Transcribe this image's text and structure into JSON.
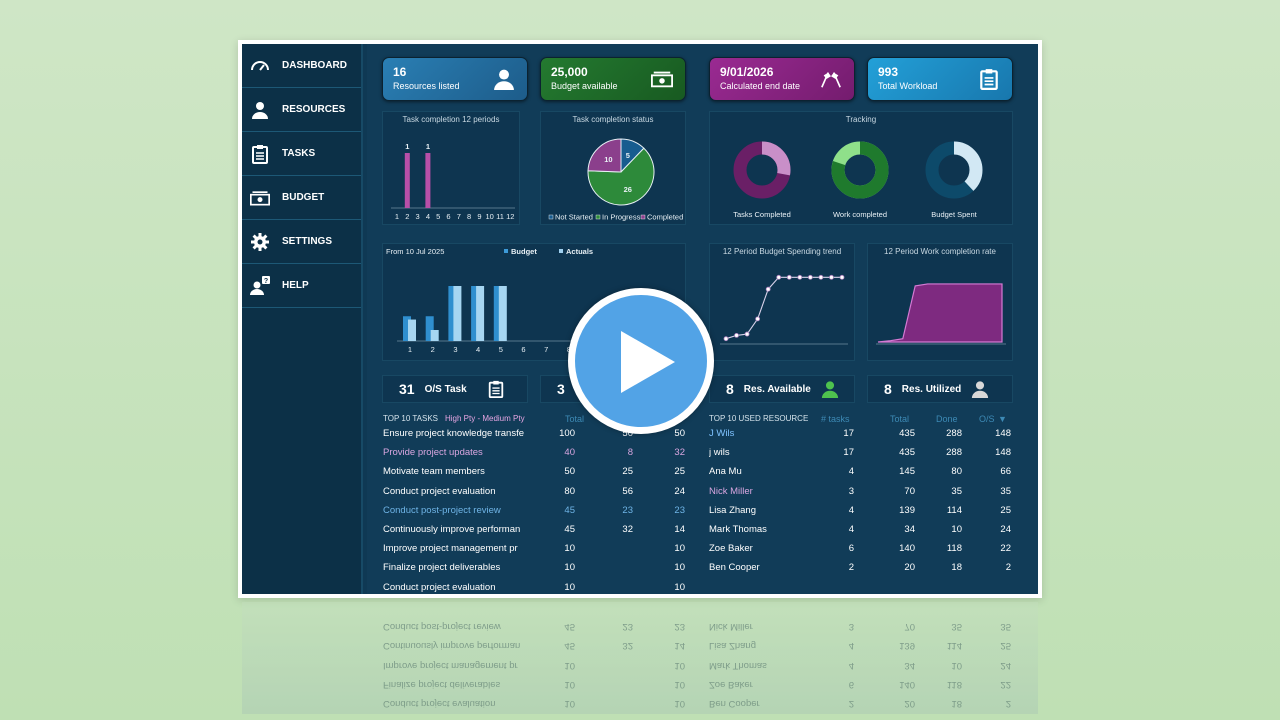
{
  "sidebar": {
    "items": [
      {
        "label": "DASHBOARD",
        "icon": "gauge-icon"
      },
      {
        "label": "RESOURCES",
        "icon": "person-icon"
      },
      {
        "label": "TASKS",
        "icon": "clipboard-icon"
      },
      {
        "label": "BUDGET",
        "icon": "money-icon"
      },
      {
        "label": "SETTINGS",
        "icon": "gear-icon"
      },
      {
        "label": "HELP",
        "icon": "help-person-icon"
      }
    ]
  },
  "cards": [
    {
      "value": "16",
      "label": "Resources listed",
      "color": "#2a7fb4",
      "icon": "person-icon"
    },
    {
      "value": "25,000",
      "label": "Budget available",
      "color": "#1f6e2a",
      "icon": "money-icon"
    },
    {
      "value": "9/01/2026",
      "label": "Calculated end date",
      "color": "#8a2384",
      "icon": "finish-flags-icon"
    },
    {
      "value": "993",
      "label": "Total Workload",
      "color": "#1e90c8",
      "icon": "clipboard-icon"
    }
  ],
  "task_completion": {
    "title": "Task completion 12 periods",
    "periods": [
      "1",
      "2",
      "3",
      "4",
      "5",
      "6",
      "7",
      "8",
      "9",
      "10",
      "11",
      "12"
    ],
    "values": [
      0,
      1,
      0,
      1,
      0,
      0,
      0,
      0,
      0,
      0,
      0,
      0
    ],
    "labels": [
      "",
      "1",
      "",
      "1",
      "",
      "",
      "",
      "",
      "",
      "",
      "",
      ""
    ]
  },
  "completion_status": {
    "title": "Task completion status",
    "slices": [
      {
        "name": "Not Started",
        "value": 5,
        "label": "5",
        "color": "#175c8f"
      },
      {
        "name": "In Progress",
        "value": 26,
        "label": "26",
        "color": "#2d8a3a"
      },
      {
        "name": "Completed",
        "value": 10,
        "label": "10",
        "color": "#8b3f8c"
      }
    ],
    "legend": [
      "Not Started",
      "In Progress",
      "Completed"
    ]
  },
  "tracking": {
    "title": "Tracking",
    "donuts": [
      {
        "label": "Tasks Completed",
        "fraction": 0.28,
        "fill": "#c98fc8",
        "base": "#6a1f66"
      },
      {
        "label": "Work completed",
        "fraction": 0.8,
        "fill": "#1f7a2d",
        "base": "#8fe08a"
      },
      {
        "label": "Budget Spent",
        "fraction": 0.38,
        "fill": "#d2e8f4",
        "base": "#0d4a6a"
      }
    ]
  },
  "budget_chart": {
    "title": "From 10 Jul 2025",
    "legend": [
      "Budget",
      "Actuals"
    ],
    "periods": [
      "1",
      "2",
      "3",
      "4",
      "5",
      "6",
      "7",
      "8"
    ],
    "budget": [
      0.45,
      0.45,
      1,
      1,
      1,
      0,
      0,
      0
    ],
    "actuals": [
      0.39,
      0.2,
      1,
      1,
      1,
      0,
      0,
      0
    ]
  },
  "spending_trend": {
    "title": "12 Period Budget Spending trend",
    "values": [
      0.05,
      0.1,
      0.12,
      0.35,
      0.8,
      0.98,
      0.98,
      0.98,
      0.98,
      0.98,
      0.98,
      0.98
    ]
  },
  "work_rate": {
    "title": "12 Period Work completion rate",
    "values": [
      0,
      0.02,
      0.05,
      0.85,
      0.88,
      0.88,
      0.88,
      0.88,
      0.88,
      0.88,
      0.88
    ]
  },
  "kpis": [
    {
      "value": "31",
      "label": "O/S Task",
      "icon": "clipboard-icon"
    },
    {
      "value": "3",
      "label": ""
    },
    {
      "value": "8",
      "label": "Res. Available",
      "icon": "person-available-icon"
    },
    {
      "value": "8",
      "label": "Res. Utilized",
      "icon": "person-icon"
    }
  ],
  "tasks_table": {
    "title": "TOP 10 TASKS",
    "filters": "High Pty - Medium Pty",
    "col_total": "Total",
    "rows": [
      {
        "name": "Ensure project knowledge transfe",
        "a": "100",
        "b": "50",
        "c": "50",
        "color": "#ffffff"
      },
      {
        "name": "Provide project updates",
        "a": "40",
        "b": "8",
        "c": "32",
        "color": "#d9a6e0"
      },
      {
        "name": "Motivate team members",
        "a": "50",
        "b": "25",
        "c": "25",
        "color": "#ffffff"
      },
      {
        "name": "Conduct project evaluation",
        "a": "80",
        "b": "56",
        "c": "24",
        "color": "#ffffff"
      },
      {
        "name": "Conduct post-project review",
        "a": "45",
        "b": "23",
        "c": "23",
        "color": "#6fb4e6"
      },
      {
        "name": "Continuously improve performan",
        "a": "45",
        "b": "32",
        "c": "14",
        "color": "#ffffff"
      },
      {
        "name": "Improve project management pr",
        "a": "10",
        "b": "",
        "c": "10",
        "color": "#ffffff"
      },
      {
        "name": "Finalize project deliverables",
        "a": "10",
        "b": "",
        "c": "10",
        "color": "#ffffff"
      },
      {
        "name": "Conduct project evaluation",
        "a": "10",
        "b": "",
        "c": "10",
        "color": "#ffffff"
      }
    ]
  },
  "resource_table": {
    "title": "TOP 10 USED RESOURCE",
    "cols": [
      "# tasks",
      "Total",
      "Done",
      "O/S"
    ],
    "rows": [
      {
        "name": "J Wils",
        "tasks": "17",
        "total": "435",
        "done": "288",
        "os": "148",
        "color": "#7fc3ff"
      },
      {
        "name": "j wils",
        "tasks": "17",
        "total": "435",
        "done": "288",
        "os": "148",
        "color": "#ffffff"
      },
      {
        "name": "Ana Mu",
        "tasks": "4",
        "total": "145",
        "done": "80",
        "os": "66",
        "color": "#ffffff"
      },
      {
        "name": "Nick Miller",
        "tasks": "3",
        "total": "70",
        "done": "35",
        "os": "35",
        "color": "#d9a6e0"
      },
      {
        "name": "Lisa Zhang",
        "tasks": "4",
        "total": "139",
        "done": "114",
        "os": "25",
        "color": "#ffffff"
      },
      {
        "name": "Mark Thomas",
        "tasks": "4",
        "total": "34",
        "done": "10",
        "os": "24",
        "color": "#ffffff"
      },
      {
        "name": "Zoe Baker",
        "tasks": "6",
        "total": "140",
        "done": "118",
        "os": "22",
        "color": "#ffffff"
      },
      {
        "name": "Ben Cooper",
        "tasks": "2",
        "total": "20",
        "done": "18",
        "os": "2",
        "color": "#ffffff"
      }
    ]
  }
}
